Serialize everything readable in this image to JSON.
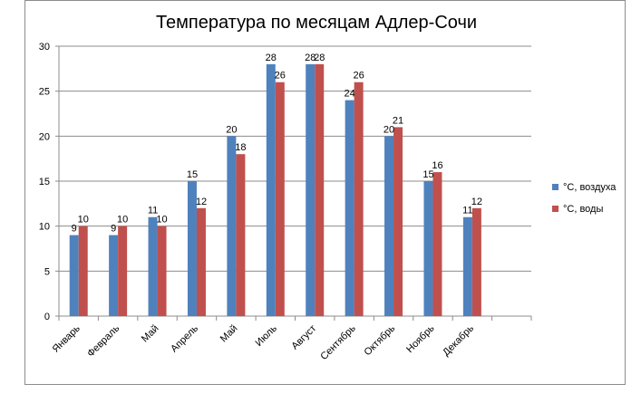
{
  "chart_data": {
    "type": "bar",
    "title": "Температура по месяцам Адлер-Сочи",
    "categories": [
      "Январь",
      "Февраль",
      "Май",
      "Апрель",
      "Май",
      "Июль",
      "Август",
      "Сентябрь",
      "Октябрь",
      "Ноябрь",
      "Декабрь",
      ""
    ],
    "series": [
      {
        "name": "°C, воздуха",
        "color": "#4f81bd",
        "values": [
          9,
          9,
          11,
          15,
          20,
          28,
          28,
          24,
          20,
          15,
          11,
          null
        ]
      },
      {
        "name": "°C, воды",
        "color": "#c0504d",
        "values": [
          10,
          10,
          10,
          12,
          18,
          26,
          28,
          26,
          21,
          16,
          12,
          null
        ]
      }
    ],
    "ylim": [
      0,
      30
    ],
    "yticks": [
      0,
      5,
      10,
      15,
      20,
      25,
      30
    ],
    "grid": true,
    "legend_position": "right",
    "data_labels": true
  }
}
